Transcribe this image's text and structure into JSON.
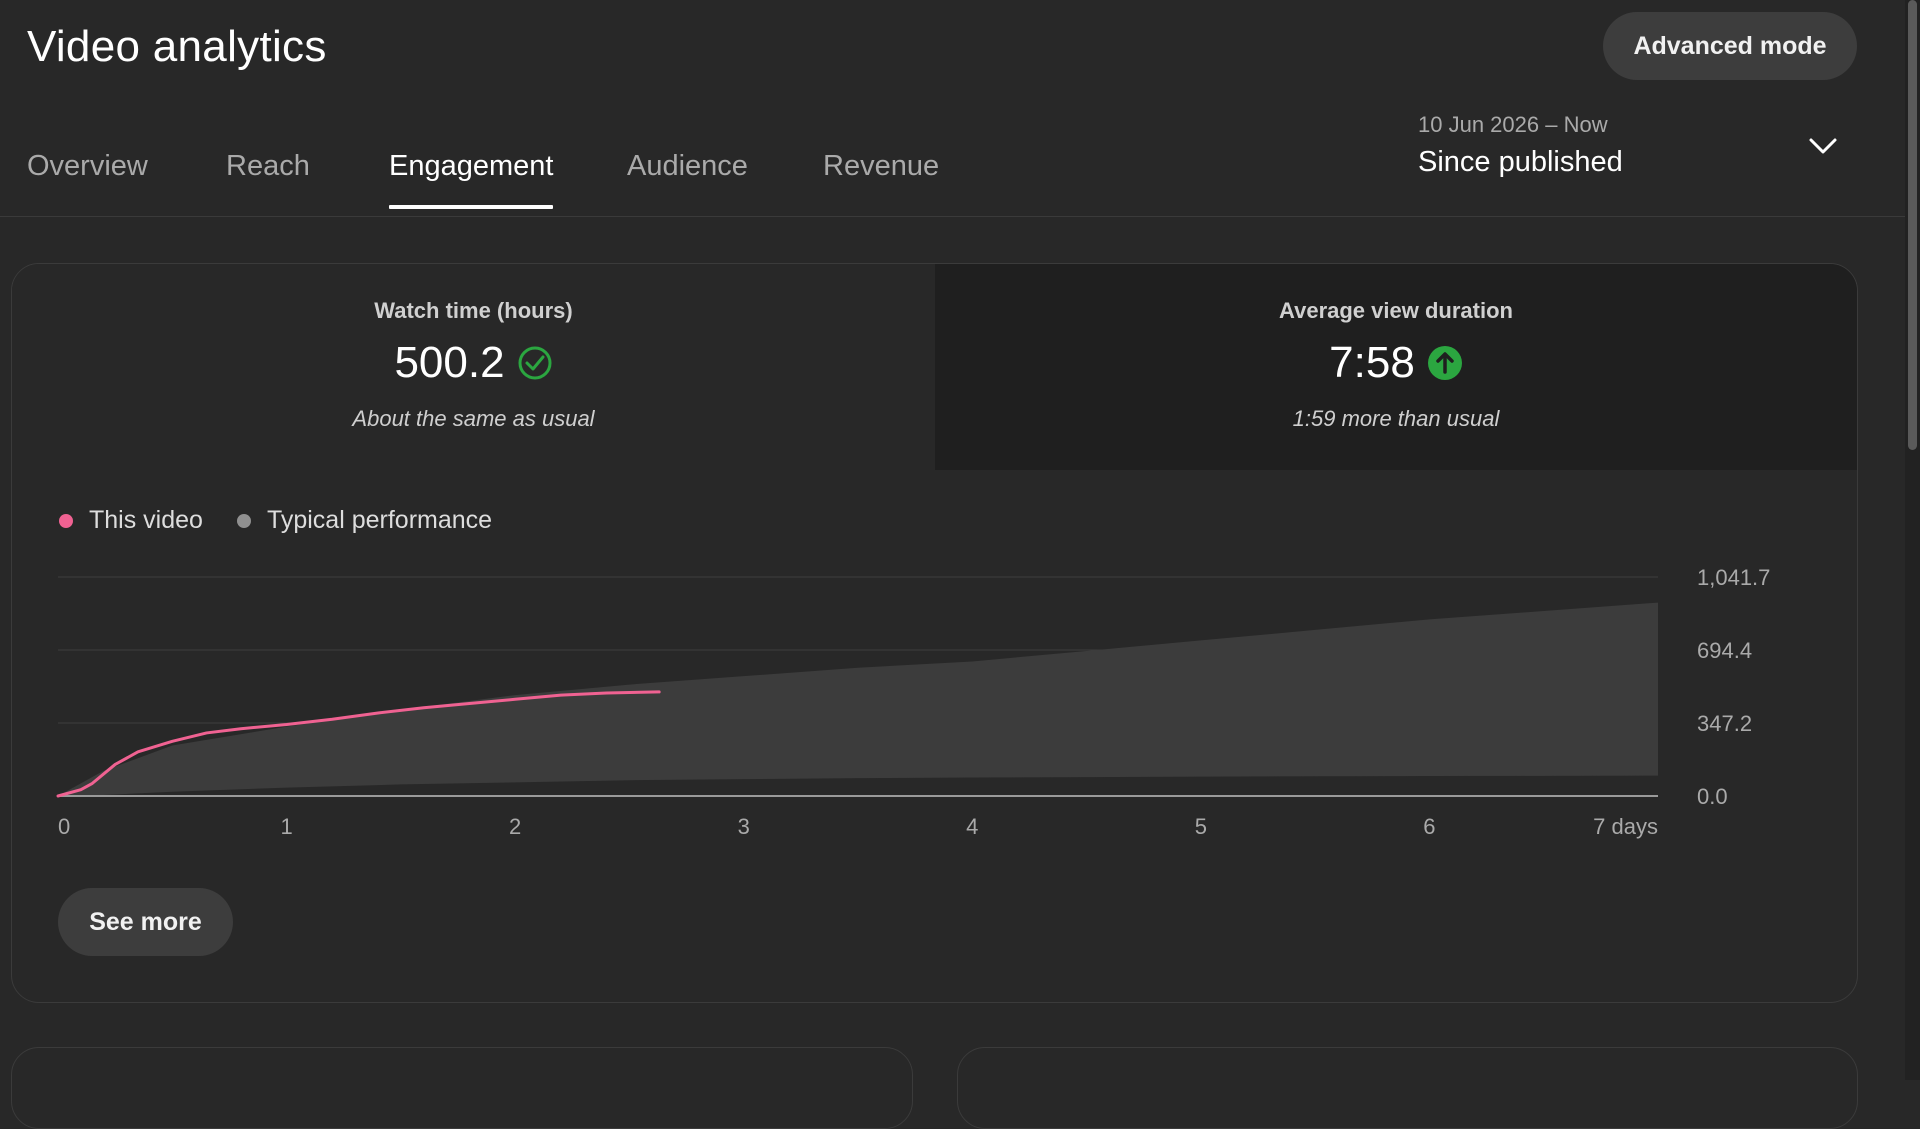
{
  "header": {
    "title": "Video analytics",
    "advanced_label": "Advanced mode"
  },
  "tabs": [
    {
      "label": "Overview",
      "active": false
    },
    {
      "label": "Reach",
      "active": false
    },
    {
      "label": "Engagement",
      "active": true
    },
    {
      "label": "Audience",
      "active": false
    },
    {
      "label": "Revenue",
      "active": false
    }
  ],
  "date_picker": {
    "range": "10 Jun 2026 – Now",
    "label": "Since published",
    "icon": "chevron-down-icon"
  },
  "metrics": [
    {
      "label": "Watch time (hours)",
      "value": "500.2",
      "note": "About the same as usual",
      "icon": "check-circle-icon",
      "icon_color": "#2ba640"
    },
    {
      "label": "Average view duration",
      "value": "7:58",
      "note": "1:59 more than usual",
      "icon": "arrow-up-circle-icon",
      "icon_color": "#2ba640"
    }
  ],
  "legend": [
    {
      "label": "This video",
      "color": "#f06292"
    },
    {
      "label": "Typical performance",
      "color": "#909090"
    }
  ],
  "chart_data": {
    "type": "area",
    "x_tick_labels": [
      "0",
      "1",
      "2",
      "3",
      "4",
      "5",
      "6",
      "7 days"
    ],
    "x_ticks": [
      0,
      1,
      2,
      3,
      4,
      5,
      6,
      7
    ],
    "y_tick_labels": [
      "1,041.7",
      "694.4",
      "347.2",
      "0.0"
    ],
    "y_ticks": [
      1041.7,
      694.4,
      347.2,
      0.0
    ],
    "xlim": [
      0,
      7
    ],
    "ylim": [
      0,
      1041.7
    ],
    "grid": true,
    "series": [
      {
        "name": "This video",
        "type": "line",
        "color": "#f06292",
        "x": [
          0,
          0.1,
          0.15,
          0.25,
          0.35,
          0.5,
          0.65,
          0.8,
          1.0,
          1.2,
          1.4,
          1.6,
          1.8,
          2.0,
          2.2,
          2.4,
          2.63
        ],
        "y": [
          0,
          30,
          60,
          150,
          210,
          260,
          300,
          320,
          340,
          365,
          395,
          420,
          440,
          460,
          480,
          490,
          495
        ]
      },
      {
        "name": "Typical performance",
        "type": "band",
        "color": "#3c3c3c",
        "x": [
          0,
          0.2,
          0.5,
          1.0,
          1.5,
          2.0,
          2.5,
          3.0,
          3.5,
          4.0,
          4.5,
          5.0,
          5.5,
          6.0,
          6.5,
          7.0
        ],
        "upper": [
          0,
          120,
          240,
          330,
          410,
          480,
          530,
          570,
          610,
          640,
          690,
          740,
          790,
          840,
          880,
          920
        ],
        "lower": [
          0,
          5,
          20,
          40,
          55,
          65,
          75,
          80,
          85,
          88,
          90,
          92,
          94,
          95,
          96,
          97
        ]
      }
    ]
  },
  "see_more_label": "See more"
}
